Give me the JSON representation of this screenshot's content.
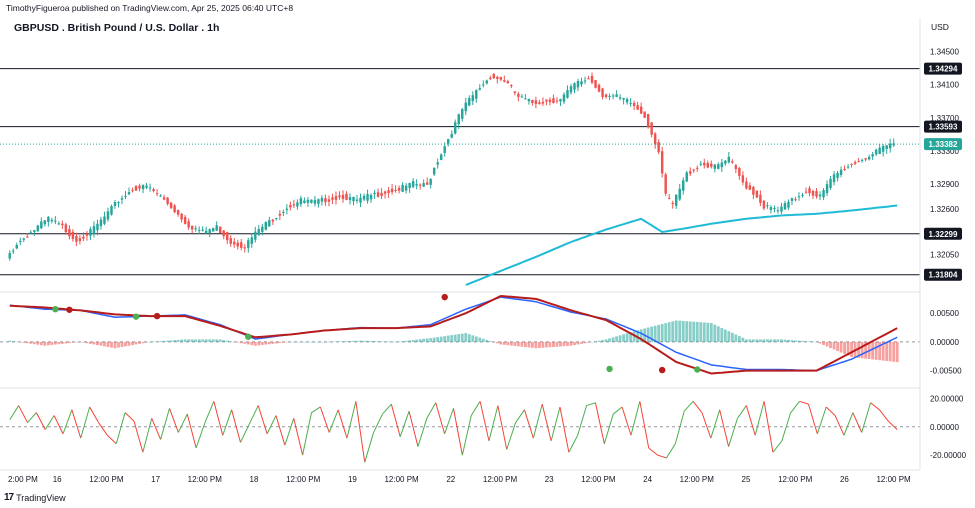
{
  "header": {
    "publisher": "TimothyFigueroa published on TradingView.com, Apr 25, 2025 06:40 UTC+8",
    "title": "GBPUSD . British Pound / U.S. Dollar . 1h",
    "currency": "USD"
  },
  "footer": {
    "brand": "TradingView",
    "logo_icon": "tradingview-logo-icon"
  },
  "colors": {
    "up": "#26a69a",
    "down": "#ef5350",
    "ma": "#1fbad6",
    "macd": "#2962ff",
    "signal": "#b71c1c",
    "level": "#131722",
    "rsi_up": "#4caf50",
    "rsi_down": "#f44336"
  },
  "chart_data": [
    {
      "type": "candlestick",
      "ylim": [
        1.3168,
        1.347
      ],
      "price_ticks": [
        {
          "value": 1.345,
          "label": "1.34500"
        },
        {
          "value": 1.341,
          "label": "1.34100"
        },
        {
          "value": 1.337,
          "label": "1.33700"
        },
        {
          "value": 1.333,
          "label": "1.33300"
        },
        {
          "value": 1.329,
          "label": "1.32900"
        },
        {
          "value": 1.326,
          "label": "1.32600"
        },
        {
          "value": 1.3205,
          "label": "1.32050"
        }
      ],
      "levels": [
        {
          "value": 1.34294,
          "label": "1.34294"
        },
        {
          "value": 1.33593,
          "label": "1.33593"
        },
        {
          "value": 1.32299,
          "label": "1.32299"
        },
        {
          "value": 1.31804,
          "label": "1.31804"
        }
      ],
      "last_price": {
        "value": 1.33382,
        "label": "1.33382"
      },
      "x_ticks": [
        "2:00 PM",
        "16",
        "12:00 PM",
        "17",
        "12:00 PM",
        "18",
        "12:00 PM",
        "19",
        "12:00 PM",
        "22",
        "12:00 PM",
        "23",
        "12:00 PM",
        "24",
        "12:00 PM",
        "25",
        "12:00 PM",
        "26",
        "12:00 PM"
      ],
      "price_path": [
        [
          0,
          1.32
        ],
        [
          3,
          1.3218
        ],
        [
          8,
          1.3235
        ],
        [
          12,
          1.3248
        ],
        [
          16,
          1.3238
        ],
        [
          20,
          1.3222
        ],
        [
          24,
          1.3232
        ],
        [
          28,
          1.325
        ],
        [
          32,
          1.327
        ],
        [
          36,
          1.3284
        ],
        [
          40,
          1.3287
        ],
        [
          44,
          1.3275
        ],
        [
          48,
          1.3258
        ],
        [
          52,
          1.324
        ],
        [
          56,
          1.3232
        ],
        [
          60,
          1.3238
        ],
        [
          64,
          1.322
        ],
        [
          68,
          1.3215
        ],
        [
          72,
          1.3235
        ],
        [
          76,
          1.3248
        ],
        [
          80,
          1.3262
        ],
        [
          84,
          1.327
        ],
        [
          88,
          1.3268
        ],
        [
          92,
          1.3272
        ],
        [
          96,
          1.3275
        ],
        [
          100,
          1.327
        ],
        [
          104,
          1.3276
        ],
        [
          108,
          1.328
        ],
        [
          112,
          1.3284
        ],
        [
          116,
          1.329
        ],
        [
          120,
          1.3288
        ],
        [
          122,
          1.331
        ],
        [
          126,
          1.3345
        ],
        [
          130,
          1.338
        ],
        [
          134,
          1.3402
        ],
        [
          138,
          1.342
        ],
        [
          142,
          1.3415
        ],
        [
          146,
          1.3395
        ],
        [
          150,
          1.3388
        ],
        [
          154,
          1.339
        ],
        [
          158,
          1.3392
        ],
        [
          162,
          1.341
        ],
        [
          166,
          1.3418
        ],
        [
          170,
          1.3398
        ],
        [
          174,
          1.3395
        ],
        [
          178,
          1.3388
        ],
        [
          182,
          1.3372
        ],
        [
          186,
          1.333
        ],
        [
          188,
          1.3275
        ],
        [
          190,
          1.3265
        ],
        [
          194,
          1.3302
        ],
        [
          198,
          1.3315
        ],
        [
          202,
          1.331
        ],
        [
          206,
          1.332
        ],
        [
          210,
          1.3292
        ],
        [
          214,
          1.3275
        ],
        [
          216,
          1.3263
        ],
        [
          220,
          1.3258
        ],
        [
          224,
          1.327
        ],
        [
          228,
          1.3282
        ],
        [
          232,
          1.3275
        ],
        [
          236,
          1.33
        ],
        [
          240,
          1.3312
        ],
        [
          244,
          1.332
        ],
        [
          248,
          1.3328
        ],
        [
          252,
          1.3338
        ],
        [
          253,
          1.3338
        ]
      ],
      "ma_path": [
        [
          130,
          1.3168
        ],
        [
          140,
          1.3185
        ],
        [
          150,
          1.3202
        ],
        [
          160,
          1.322
        ],
        [
          170,
          1.3235
        ],
        [
          180,
          1.3248
        ],
        [
          186,
          1.3232
        ],
        [
          192,
          1.3236
        ],
        [
          200,
          1.3242
        ],
        [
          210,
          1.3248
        ],
        [
          220,
          1.3252
        ],
        [
          230,
          1.3254
        ],
        [
          240,
          1.3258
        ],
        [
          253,
          1.3264
        ]
      ]
    },
    {
      "type": "line",
      "name": "macd",
      "ylim": [
        -0.0075,
        0.0073
      ],
      "ticks": [
        {
          "value": 0.005,
          "label": "0.00500"
        },
        {
          "value": 0.0,
          "label": "0.00000"
        },
        {
          "value": -0.005,
          "label": "-0.00500"
        }
      ],
      "macd_path": [
        [
          0,
          0.0064
        ],
        [
          10,
          0.0057
        ],
        [
          20,
          0.0055
        ],
        [
          30,
          0.0043
        ],
        [
          40,
          0.0045
        ],
        [
          50,
          0.0047
        ],
        [
          60,
          0.003
        ],
        [
          70,
          0.0005
        ],
        [
          80,
          0.0013
        ],
        [
          90,
          0.002
        ],
        [
          100,
          0.0025
        ],
        [
          110,
          0.0024
        ],
        [
          120,
          0.003
        ],
        [
          130,
          0.0057
        ],
        [
          140,
          0.0078
        ],
        [
          150,
          0.007
        ],
        [
          160,
          0.0052
        ],
        [
          170,
          0.004
        ],
        [
          180,
          0.0015
        ],
        [
          190,
          -0.0018
        ],
        [
          200,
          -0.004
        ],
        [
          210,
          -0.0048
        ],
        [
          220,
          -0.0048
        ],
        [
          230,
          -0.005
        ],
        [
          240,
          -0.003
        ],
        [
          253,
          0.0008
        ]
      ],
      "signal_path": [
        [
          0,
          0.0063
        ],
        [
          10,
          0.006
        ],
        [
          20,
          0.0055
        ],
        [
          30,
          0.0048
        ],
        [
          40,
          0.0045
        ],
        [
          50,
          0.0045
        ],
        [
          60,
          0.0028
        ],
        [
          70,
          0.0008
        ],
        [
          80,
          0.0013
        ],
        [
          90,
          0.002
        ],
        [
          100,
          0.0024
        ],
        [
          110,
          0.0024
        ],
        [
          120,
          0.0027
        ],
        [
          130,
          0.005
        ],
        [
          140,
          0.008
        ],
        [
          150,
          0.0075
        ],
        [
          160,
          0.0055
        ],
        [
          170,
          0.0038
        ],
        [
          180,
          0.0005
        ],
        [
          190,
          -0.0035
        ],
        [
          200,
          -0.0055
        ],
        [
          210,
          -0.005
        ],
        [
          220,
          -0.005
        ],
        [
          230,
          -0.005
        ],
        [
          240,
          -0.0018
        ],
        [
          253,
          0.0024
        ]
      ],
      "crosses": [
        {
          "x": 13,
          "value": 0.0057,
          "kind": "up"
        },
        {
          "x": 17,
          "value": 0.0056,
          "kind": "down"
        },
        {
          "x": 36,
          "value": 0.0044,
          "kind": "up"
        },
        {
          "x": 42,
          "value": 0.0045,
          "kind": "down"
        },
        {
          "x": 68,
          "value": 0.0009,
          "kind": "up"
        },
        {
          "x": 124,
          "value": 0.0078,
          "kind": "down"
        },
        {
          "x": 171,
          "value": -0.0047,
          "kind": "up"
        },
        {
          "x": 186,
          "value": -0.0049,
          "kind": "down"
        },
        {
          "x": 196,
          "value": -0.0048,
          "kind": "up"
        }
      ]
    },
    {
      "type": "line",
      "name": "oscillator",
      "ylim": [
        -27,
        26
      ],
      "ticks": [
        {
          "value": 20,
          "label": "20.00000"
        },
        {
          "value": 0,
          "label": "0.00000"
        },
        {
          "value": -20,
          "label": "-20.00000"
        }
      ],
      "values": [
        5,
        15,
        3,
        10,
        -2,
        8,
        -5,
        12,
        -8,
        14,
        3,
        -6,
        -12,
        10,
        4,
        -18,
        6,
        -9,
        13,
        -4,
        9,
        -15,
        3,
        18,
        -6,
        12,
        -11,
        2,
        15,
        -5,
        8,
        -13,
        6,
        -20,
        10,
        14,
        -4,
        12,
        -8,
        18,
        -25,
        -4,
        9,
        16,
        -7,
        11,
        -14,
        6,
        17,
        -5,
        13,
        -20,
        8,
        18,
        -10,
        15,
        -16,
        3,
        12,
        -8,
        16,
        -10,
        14,
        -18,
        -6,
        15,
        17,
        -12,
        9,
        14,
        -6,
        18,
        -15,
        -20,
        -22,
        -12,
        11,
        18,
        10,
        -8,
        12,
        -14,
        6,
        15,
        -6,
        18,
        -18,
        -10,
        10,
        18,
        16,
        -5,
        14,
        8,
        -6,
        10,
        -4,
        17,
        12,
        4,
        -2
      ]
    }
  ]
}
